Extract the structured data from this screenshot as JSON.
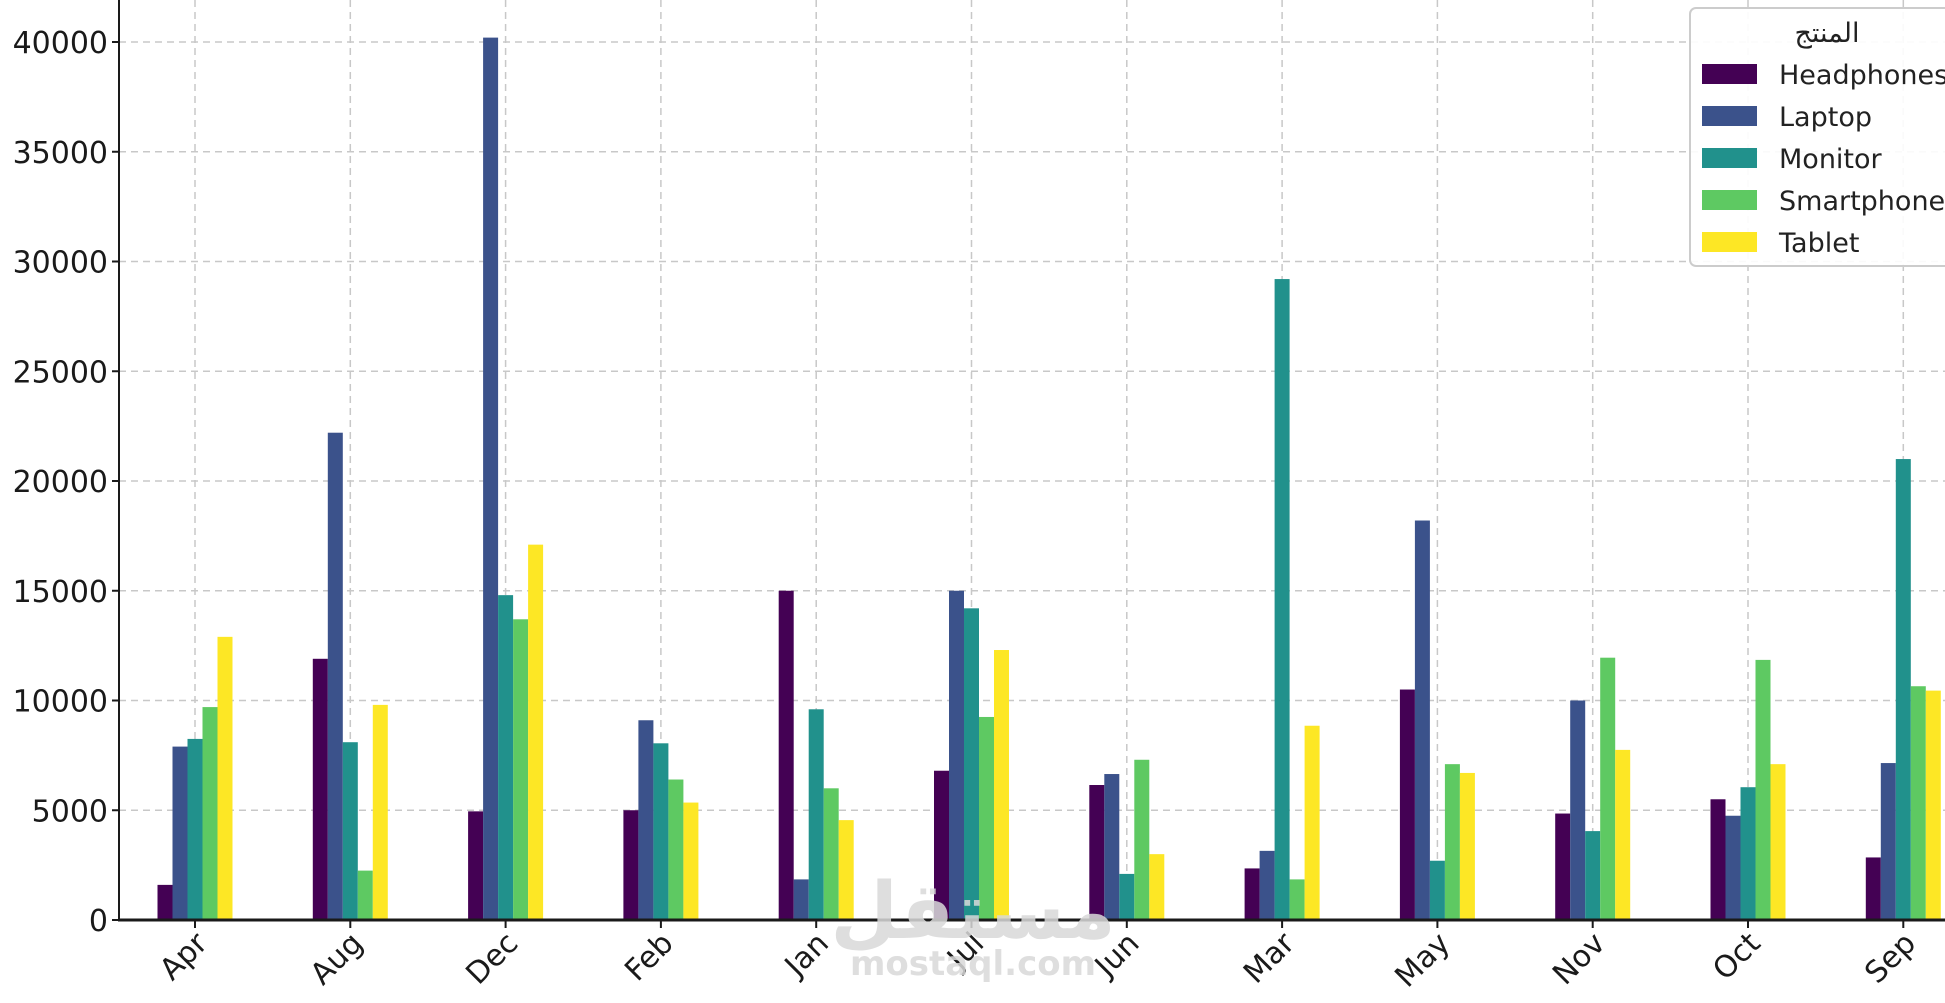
{
  "chart_data": {
    "type": "bar",
    "title": "",
    "xlabel": "",
    "ylabel": "",
    "categories": [
      "Apr",
      "Aug",
      "Dec",
      "Feb",
      "Jan",
      "Jul",
      "Jun",
      "Mar",
      "May",
      "Nov",
      "Oct",
      "Sep"
    ],
    "yticks": [
      "0",
      "5000",
      "10000",
      "15000",
      "20000",
      "25000",
      "30000",
      "35000",
      "40000"
    ],
    "ylim": [
      0,
      42000
    ],
    "grid": true,
    "legend": {
      "title": "المنتج",
      "placement": "top-right"
    },
    "series": [
      {
        "name": "Headphones",
        "color": "#440154",
        "values": [
          1600,
          11900,
          4950,
          5000,
          15000,
          6800,
          6150,
          2350,
          10500,
          4850,
          5500,
          2850
        ]
      },
      {
        "name": "Laptop",
        "color": "#3b528b",
        "values": [
          7900,
          22200,
          40200,
          9100,
          1850,
          15000,
          6650,
          3150,
          18200,
          10000,
          4750,
          7150
        ]
      },
      {
        "name": "Monitor",
        "color": "#21918c",
        "values": [
          8250,
          8100,
          14800,
          8050,
          9600,
          14200,
          2100,
          29200,
          2700,
          4050,
          6050,
          21000
        ]
      },
      {
        "name": "Smartphone",
        "color": "#5ec962",
        "values": [
          9700,
          2250,
          13700,
          6400,
          6000,
          9250,
          7300,
          1850,
          7100,
          11950,
          11850,
          10650
        ]
      },
      {
        "name": "Tablet",
        "color": "#fde725",
        "values": [
          12900,
          9800,
          17100,
          5350,
          4550,
          12300,
          3000,
          8850,
          6700,
          7750,
          7100,
          10450
        ]
      }
    ]
  },
  "watermark": {
    "logo_text": "مستقل",
    "url_text": "mostaql.com"
  }
}
